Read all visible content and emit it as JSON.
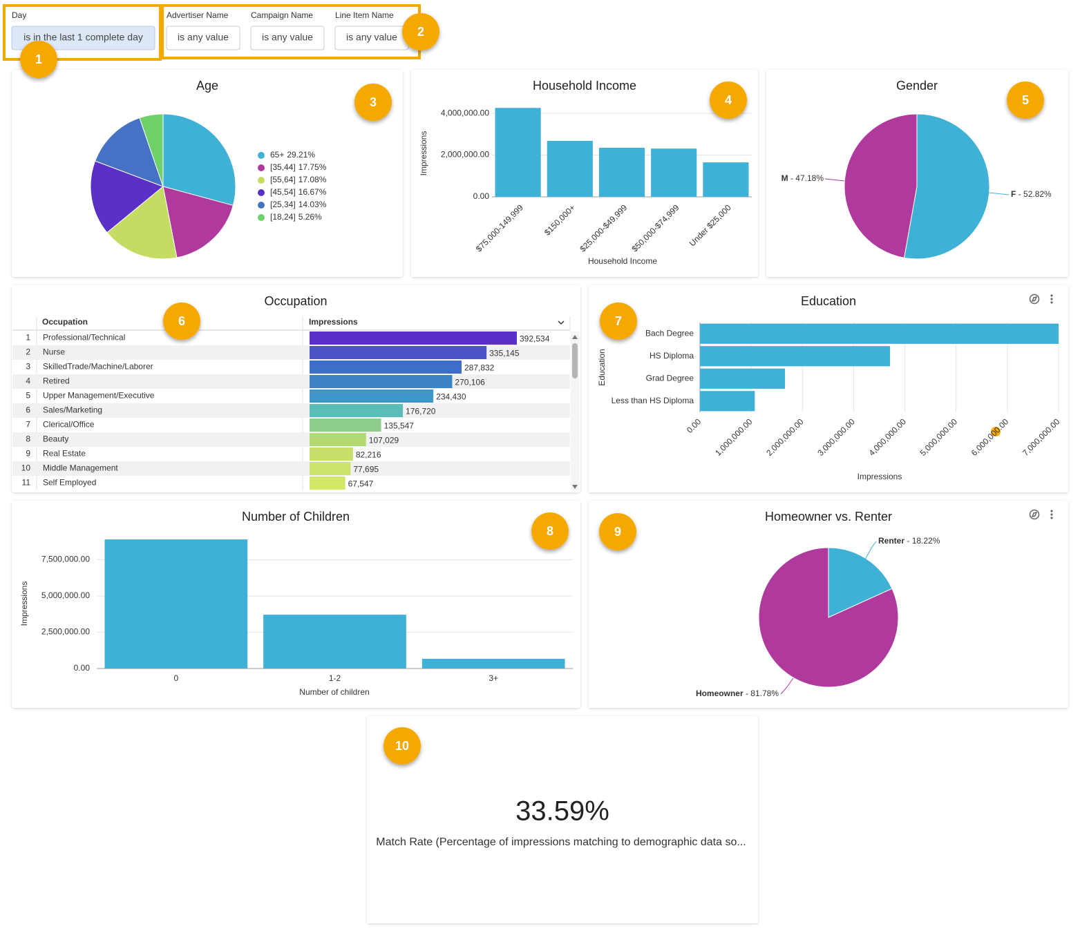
{
  "filters": [
    {
      "label": "Day",
      "value": "is in the last 1 complete day"
    },
    {
      "label": "Advertiser Name",
      "value": "is any value"
    },
    {
      "label": "Campaign Name",
      "value": "is any value"
    },
    {
      "label": "Line Item Name",
      "value": "is any value"
    }
  ],
  "badges": [
    1,
    2,
    3,
    4,
    5,
    6,
    7,
    8,
    9,
    10
  ],
  "chart_data": [
    {
      "type": "pie",
      "title": "Age",
      "categories": [
        "65+",
        "[35,44]",
        "[55,64]",
        "[45,54]",
        "[25,34]",
        "[18,24]"
      ],
      "values": [
        29.21,
        17.75,
        17.08,
        16.67,
        14.03,
        5.26
      ],
      "value_labels": [
        "29.21%",
        "17.75%",
        "17.08%",
        "16.67%",
        "14.03%",
        "5.26%"
      ],
      "colors": [
        "#3fb0d6",
        "#b0399e",
        "#c5dc62",
        "#5b30c6",
        "#4472c4",
        "#6fd16a"
      ],
      "legend": "right"
    },
    {
      "type": "bar",
      "title": "Household Income",
      "categories": [
        "$75,000-149,999",
        "$150,000+",
        "$25,000-$49,999",
        "$50,000-$74,999",
        "Under $25,000"
      ],
      "values": [
        4260000,
        2680000,
        2350000,
        2310000,
        1650000
      ],
      "color": "#3fb0d6",
      "ylim": [
        0,
        4500000
      ],
      "yticks": [
        {
          "value": 0,
          "label": "0.00"
        },
        {
          "value": 2000000,
          "label": "2,000,000.00"
        },
        {
          "value": 4000000,
          "label": "4,000,000.00"
        }
      ],
      "xlabel": "Household Income",
      "ylabel": "Impressions",
      "grid": true
    },
    {
      "type": "pie",
      "title": "Gender",
      "categories": [
        "F",
        "M"
      ],
      "values": [
        52.82,
        47.18
      ],
      "value_labels": [
        "52.82%",
        "47.18%"
      ],
      "label_separator": " - ",
      "colors": [
        "#3fb0d6",
        "#b0399e"
      ]
    },
    {
      "type": "table_bar",
      "title": "Occupation",
      "columns": [
        "Occupation",
        "Impressions"
      ],
      "row_numbers": [
        1,
        2,
        3,
        4,
        5,
        6,
        7,
        8,
        9,
        10,
        11
      ],
      "categories": [
        "Professional/Technical",
        "Nurse",
        "SkilledTrade/Machine/Laborer",
        "Retired",
        "Upper Management/Executive",
        "Sales/Marketing",
        "Clerical/Office",
        "Beauty",
        "Real Estate",
        "Middle Management",
        "Self Employed"
      ],
      "values": [
        392534,
        335145,
        287832,
        270106,
        234430,
        176720,
        135547,
        107029,
        82216,
        77695,
        67547
      ],
      "value_labels": [
        "392,534",
        "335,145",
        "287,832",
        "270,106",
        "234,430",
        "176,720",
        "135,547",
        "107,029",
        "82,216",
        "77,695",
        "67,547"
      ],
      "colors": [
        "#5b2fc9",
        "#4b55c8",
        "#3e6fc8",
        "#3c82c6",
        "#3e97c8",
        "#5abdb7",
        "#8fcd8c",
        "#b3d973",
        "#c6e06a",
        "#cde46a",
        "#d3e668"
      ],
      "xlim": [
        0,
        392534
      ]
    },
    {
      "type": "barh",
      "title": "Education",
      "categories": [
        "Bach Degree",
        "HS Diploma",
        "Grad Degree",
        "Less than HS Diploma"
      ],
      "values": [
        7000000,
        3710000,
        1660000,
        1070000
      ],
      "color": "#3fb0d6",
      "xlim": [
        0,
        7000000
      ],
      "xticks": [
        {
          "value": 0,
          "label": "0.00"
        },
        {
          "value": 1000000,
          "label": "1,000,000.00"
        },
        {
          "value": 2000000,
          "label": "2,000,000.00"
        },
        {
          "value": 3000000,
          "label": "3,000,000.00"
        },
        {
          "value": 4000000,
          "label": "4,000,000.00"
        },
        {
          "value": 5000000,
          "label": "5,000,000.00"
        },
        {
          "value": 6000000,
          "label": "6,000,000.00"
        },
        {
          "value": 7000000,
          "label": "7,000,000.00"
        }
      ],
      "xlabel": "Impressions",
      "ylabel": "Education",
      "grid": true
    },
    {
      "type": "bar",
      "title": "Number of Children",
      "categories": [
        "0",
        "1-2",
        "3+"
      ],
      "values": [
        8900000,
        3710000,
        670000
      ],
      "color": "#3fb0d6",
      "ylim": [
        0,
        9000000
      ],
      "yticks": [
        {
          "value": 0,
          "label": "0.00"
        },
        {
          "value": 2500000,
          "label": "2,500,000.00"
        },
        {
          "value": 5000000,
          "label": "5,000,000.00"
        },
        {
          "value": 7500000,
          "label": "7,500,000.00"
        }
      ],
      "xlabel": "Number of children",
      "ylabel": "Impressions",
      "grid": true
    },
    {
      "type": "pie",
      "title": "Homeowner vs. Renter",
      "categories": [
        "Renter",
        "Homeowner"
      ],
      "values": [
        18.22,
        81.78
      ],
      "value_labels": [
        "18.22%",
        "81.78%"
      ],
      "label_separator": " - ",
      "colors": [
        "#3fb0d6",
        "#b0399e"
      ]
    },
    {
      "type": "scorecard",
      "value": 33.59,
      "value_label": "33.59%",
      "caption": "Match Rate (Percentage of impressions matching to demographic data so..."
    }
  ]
}
